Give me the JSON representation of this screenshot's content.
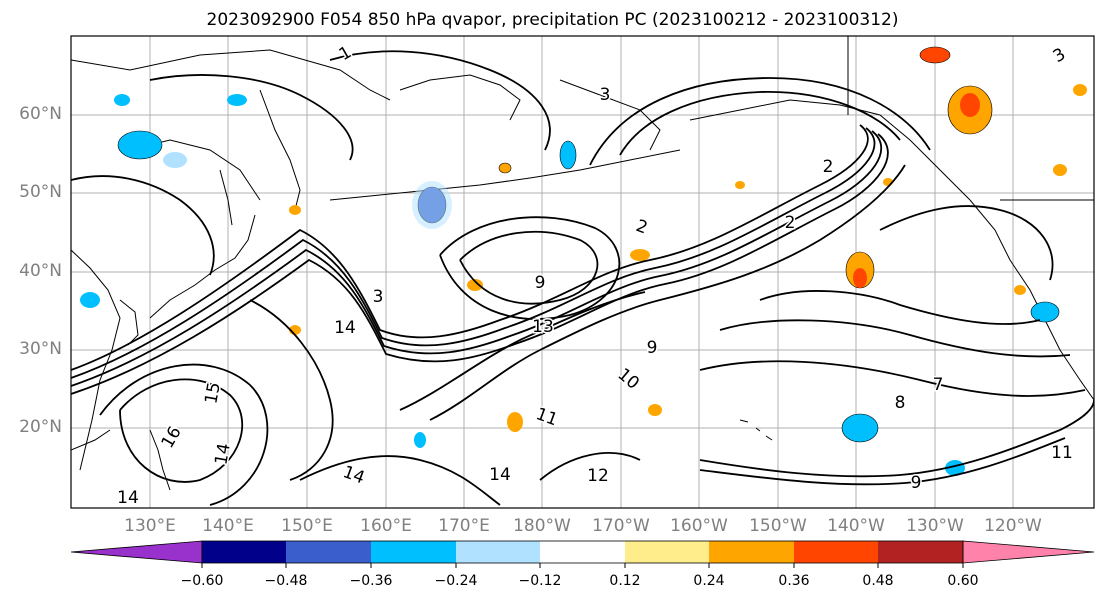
{
  "title": "2023092900 F054 850 hPa qvapor, precipitation PC (2023100212 - 2023100312)",
  "map": {
    "lat_ticks": [
      "60°N",
      "50°N",
      "40°N",
      "30°N",
      "20°N"
    ],
    "lon_ticks": [
      "130°E",
      "140°E",
      "150°E",
      "160°E",
      "170°E",
      "180°W",
      "170°W",
      "160°W",
      "150°W",
      "140°W",
      "130°W",
      "120°W"
    ],
    "contour_labels": [
      {
        "text": "1",
        "deg": -30
      },
      {
        "text": "3",
        "deg": 0
      },
      {
        "text": "2",
        "deg": 20
      },
      {
        "text": "2",
        "deg": 0
      },
      {
        "text": "3",
        "deg": 0
      },
      {
        "text": "9",
        "deg": 0
      },
      {
        "text": "13",
        "deg": 0
      },
      {
        "text": "14",
        "deg": 0
      },
      {
        "text": "15",
        "deg": -80
      },
      {
        "text": "16",
        "deg": -60
      },
      {
        "text": "14",
        "deg": -80
      },
      {
        "text": "14",
        "deg": 20
      },
      {
        "text": "14",
        "deg": 0
      },
      {
        "text": "11",
        "deg": 20
      },
      {
        "text": "12",
        "deg": 0
      },
      {
        "text": "14",
        "deg": 0
      },
      {
        "text": "10",
        "deg": 40
      },
      {
        "text": "9",
        "deg": 0
      },
      {
        "text": "9",
        "deg": 0
      },
      {
        "text": "8",
        "deg": 0
      },
      {
        "text": "7",
        "deg": 0
      },
      {
        "text": "2",
        "deg": 0
      },
      {
        "text": "3",
        "deg": -30
      },
      {
        "text": "11",
        "deg": 0
      }
    ]
  },
  "colorbar": {
    "colors": [
      "#9932cc",
      "#00008b",
      "#3a5fcd",
      "#00bfff",
      "#b0e2ff",
      "#ffffff",
      "#ffec8b",
      "#ffa500",
      "#ff4500",
      "#b22222",
      "#ff82ab"
    ],
    "labels": [
      "−0.60",
      "−0.48",
      "−0.36",
      "−0.24",
      "−0.12",
      "0.12",
      "0.24",
      "0.36",
      "0.48",
      "0.60"
    ]
  }
}
